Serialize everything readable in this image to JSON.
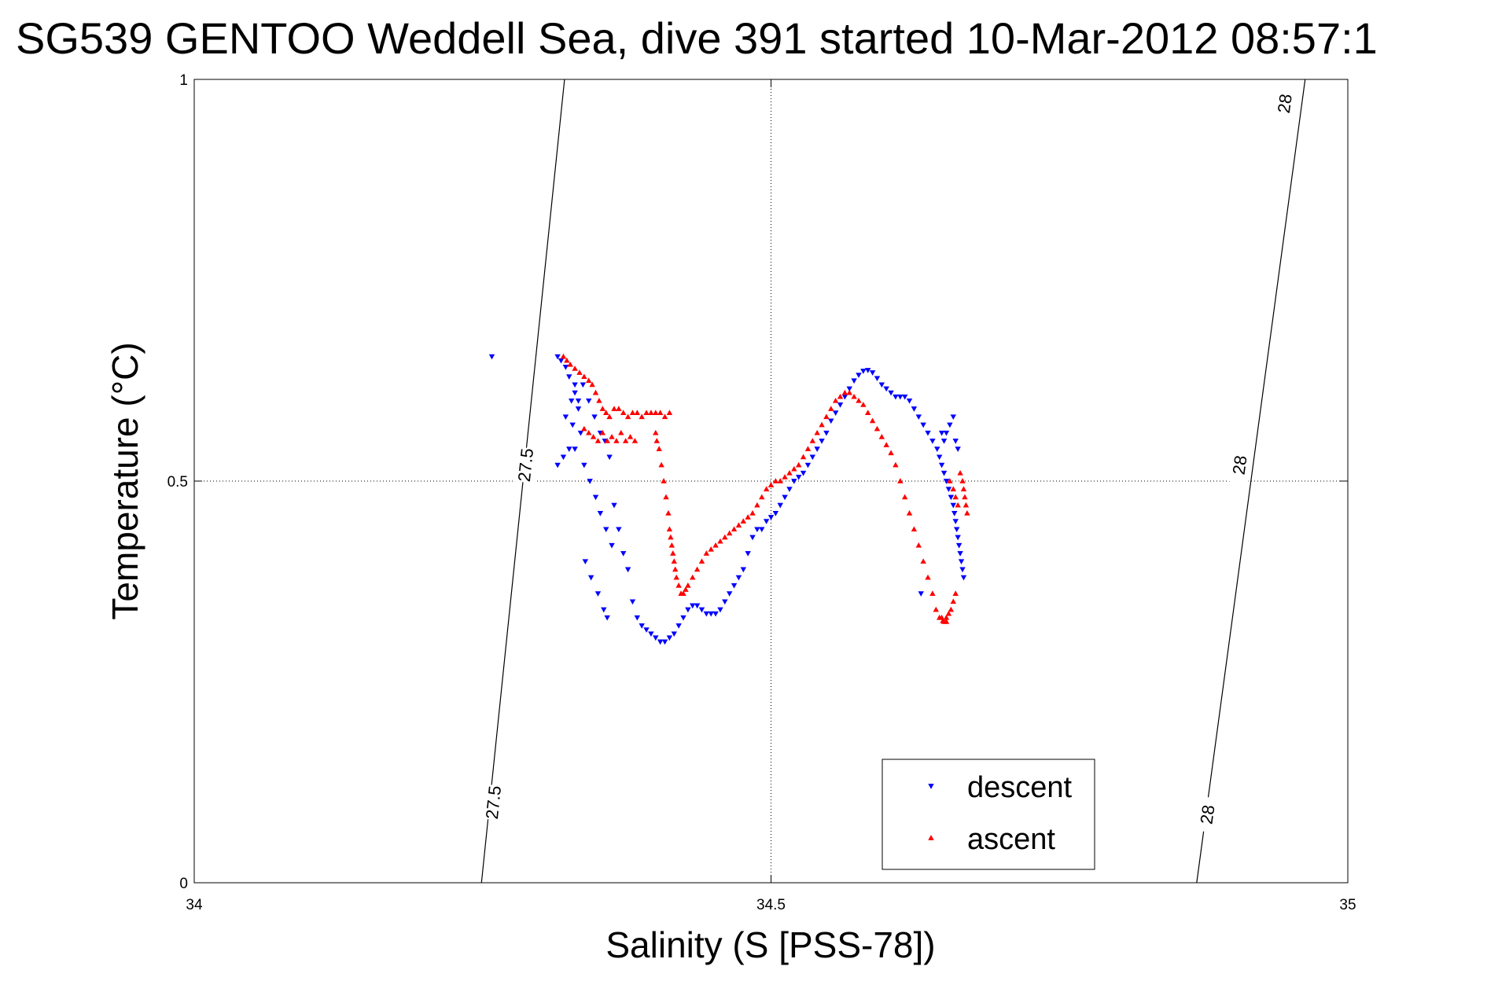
{
  "chart_data": {
    "type": "scatter",
    "title": "SG539 GENTOO Weddell Sea, dive 391 started 10-Mar-2012 08:57:1",
    "xlabel": "Salinity (S [PSS-78])",
    "ylabel": "Temperature (°C)",
    "xlim": [
      34,
      35
    ],
    "ylim": [
      0,
      1
    ],
    "xticks": [
      34,
      34.5,
      35
    ],
    "xtick_labels": [
      "34",
      "34.5",
      "35"
    ],
    "yticks": [
      0,
      0.5,
      1
    ],
    "ytick_labels": [
      "0",
      "0.5",
      "1"
    ],
    "grid": true,
    "legend_position": "bottom-right",
    "isopycnals": [
      {
        "label": "27.5",
        "points": [
          [
            34.249,
            0
          ],
          [
            34.321,
            1
          ]
        ],
        "label_positions": [
          [
            34.259,
            0.1
          ],
          [
            34.287,
            0.52
          ]
        ]
      },
      {
        "label": "28",
        "points": [
          [
            34.869,
            0
          ],
          [
            34.963,
            1
          ]
        ],
        "label_positions": [
          [
            34.878,
            0.085
          ],
          [
            34.906,
            0.52
          ],
          [
            34.945,
            0.97
          ]
        ]
      }
    ],
    "series": [
      {
        "name": "descent",
        "marker": "triangle-down",
        "color": "#0000ff",
        "x": [
          34.258,
          34.315,
          34.318,
          34.322,
          34.325,
          34.33,
          34.327,
          34.333,
          34.322,
          34.328,
          34.335,
          34.33,
          34.338,
          34.343,
          34.348,
          34.352,
          34.357,
          34.362,
          34.339,
          34.344,
          34.35,
          34.355,
          34.358,
          34.325,
          34.32,
          34.315,
          34.33,
          34.333,
          34.337,
          34.342,
          34.347,
          34.352,
          34.356,
          34.36,
          34.364,
          34.368,
          34.372,
          34.376,
          34.38,
          34.384,
          34.388,
          34.392,
          34.396,
          34.4,
          34.404,
          34.408,
          34.412,
          34.416,
          34.42,
          34.424,
          34.428,
          34.432,
          34.436,
          34.44,
          34.444,
          34.448,
          34.452,
          34.456,
          34.46,
          34.464,
          34.468,
          34.472,
          34.476,
          34.48,
          34.484,
          34.488,
          34.492,
          34.496,
          34.5,
          34.504,
          34.508,
          34.512,
          34.516,
          34.52,
          34.524,
          34.528,
          34.532,
          34.536,
          34.54,
          34.544,
          34.548,
          34.552,
          34.556,
          34.56,
          34.564,
          34.568,
          34.572,
          34.576,
          34.58,
          34.584,
          34.588,
          34.592,
          34.596,
          34.6,
          34.604,
          34.608,
          34.612,
          34.616,
          34.62,
          34.624,
          34.628,
          34.632,
          34.636,
          34.64,
          34.644,
          34.646,
          34.648,
          34.65,
          34.652,
          34.654,
          34.656,
          34.658,
          34.659,
          34.66,
          34.661,
          34.662,
          34.663,
          34.664,
          34.665,
          34.666,
          34.667,
          34.648,
          34.65,
          34.652,
          34.655,
          34.658,
          34.66,
          34.662,
          34.63
        ],
        "y": [
          0.655,
          0.655,
          0.65,
          0.642,
          0.63,
          0.62,
          0.6,
          0.59,
          0.58,
          0.57,
          0.56,
          0.54,
          0.52,
          0.5,
          0.48,
          0.46,
          0.44,
          0.42,
          0.4,
          0.38,
          0.36,
          0.34,
          0.33,
          0.54,
          0.53,
          0.52,
          0.61,
          0.6,
          0.62,
          0.6,
          0.58,
          0.56,
          0.55,
          0.53,
          0.47,
          0.44,
          0.41,
          0.39,
          0.35,
          0.33,
          0.32,
          0.315,
          0.31,
          0.305,
          0.3,
          0.3,
          0.305,
          0.31,
          0.32,
          0.33,
          0.34,
          0.345,
          0.345,
          0.34,
          0.335,
          0.335,
          0.335,
          0.34,
          0.35,
          0.36,
          0.37,
          0.38,
          0.39,
          0.41,
          0.43,
          0.44,
          0.44,
          0.45,
          0.455,
          0.46,
          0.47,
          0.48,
          0.49,
          0.5,
          0.505,
          0.51,
          0.52,
          0.53,
          0.54,
          0.55,
          0.56,
          0.575,
          0.585,
          0.595,
          0.605,
          0.615,
          0.625,
          0.632,
          0.637,
          0.638,
          0.635,
          0.628,
          0.62,
          0.615,
          0.61,
          0.605,
          0.605,
          0.605,
          0.6,
          0.59,
          0.58,
          0.57,
          0.56,
          0.55,
          0.54,
          0.53,
          0.52,
          0.51,
          0.5,
          0.49,
          0.48,
          0.47,
          0.46,
          0.45,
          0.44,
          0.43,
          0.42,
          0.41,
          0.4,
          0.39,
          0.38,
          0.56,
          0.55,
          0.56,
          0.57,
          0.58,
          0.55,
          0.54,
          0.36
        ]
      },
      {
        "name": "ascent",
        "marker": "triangle-up",
        "color": "#ff0000",
        "x": [
          34.32,
          34.323,
          34.326,
          34.33,
          34.334,
          34.338,
          34.342,
          34.345,
          34.348,
          34.351,
          34.354,
          34.357,
          34.36,
          34.364,
          34.368,
          34.372,
          34.376,
          34.38,
          34.384,
          34.388,
          34.392,
          34.396,
          34.4,
          34.404,
          34.408,
          34.412,
          34.338,
          34.342,
          34.346,
          34.35,
          34.354,
          34.358,
          34.362,
          34.366,
          34.37,
          34.374,
          34.378,
          34.382,
          34.4,
          34.401,
          34.403,
          34.405,
          34.407,
          34.409,
          34.411,
          34.412,
          34.413,
          34.414,
          34.415,
          34.416,
          34.417,
          34.418,
          34.42,
          34.422,
          34.424,
          34.426,
          34.428,
          34.432,
          34.436,
          34.44,
          34.444,
          34.448,
          34.452,
          34.456,
          34.46,
          34.464,
          34.468,
          34.472,
          34.476,
          34.48,
          34.484,
          34.488,
          34.492,
          34.496,
          34.5,
          34.504,
          34.508,
          34.512,
          34.516,
          34.52,
          34.524,
          34.528,
          34.532,
          34.536,
          34.54,
          34.544,
          34.548,
          34.552,
          34.556,
          34.56,
          34.564,
          34.568,
          34.572,
          34.576,
          34.58,
          34.584,
          34.588,
          34.592,
          34.596,
          34.6,
          34.604,
          34.608,
          34.612,
          34.616,
          34.62,
          34.624,
          34.628,
          34.632,
          34.636,
          34.64,
          34.643,
          34.646,
          34.649,
          34.652,
          34.655,
          34.658,
          34.66,
          34.662,
          34.664,
          34.666,
          34.667,
          34.668,
          34.669,
          34.67,
          34.648,
          34.65,
          34.652,
          34.654,
          34.656,
          34.658,
          34.66
        ],
        "y": [
          0.655,
          0.65,
          0.645,
          0.64,
          0.635,
          0.63,
          0.625,
          0.62,
          0.61,
          0.6,
          0.59,
          0.585,
          0.58,
          0.59,
          0.59,
          0.585,
          0.58,
          0.585,
          0.585,
          0.58,
          0.585,
          0.585,
          0.585,
          0.585,
          0.58,
          0.585,
          0.565,
          0.56,
          0.555,
          0.55,
          0.56,
          0.55,
          0.555,
          0.55,
          0.56,
          0.55,
          0.555,
          0.55,
          0.56,
          0.55,
          0.54,
          0.52,
          0.5,
          0.48,
          0.46,
          0.44,
          0.43,
          0.42,
          0.41,
          0.4,
          0.39,
          0.38,
          0.37,
          0.36,
          0.36,
          0.365,
          0.37,
          0.38,
          0.39,
          0.4,
          0.41,
          0.415,
          0.42,
          0.425,
          0.43,
          0.435,
          0.44,
          0.445,
          0.45,
          0.455,
          0.46,
          0.47,
          0.48,
          0.49,
          0.495,
          0.5,
          0.5,
          0.505,
          0.51,
          0.515,
          0.52,
          0.53,
          0.54,
          0.55,
          0.56,
          0.57,
          0.58,
          0.59,
          0.6,
          0.605,
          0.61,
          0.61,
          0.605,
          0.6,
          0.595,
          0.585,
          0.575,
          0.565,
          0.555,
          0.545,
          0.535,
          0.52,
          0.5,
          0.48,
          0.46,
          0.44,
          0.42,
          0.4,
          0.38,
          0.36,
          0.34,
          0.33,
          0.326,
          0.325,
          0.5,
          0.49,
          0.48,
          0.47,
          0.51,
          0.5,
          0.49,
          0.48,
          0.47,
          0.46,
          0.33,
          0.325,
          0.33,
          0.335,
          0.34,
          0.35,
          0.36
        ]
      }
    ]
  }
}
